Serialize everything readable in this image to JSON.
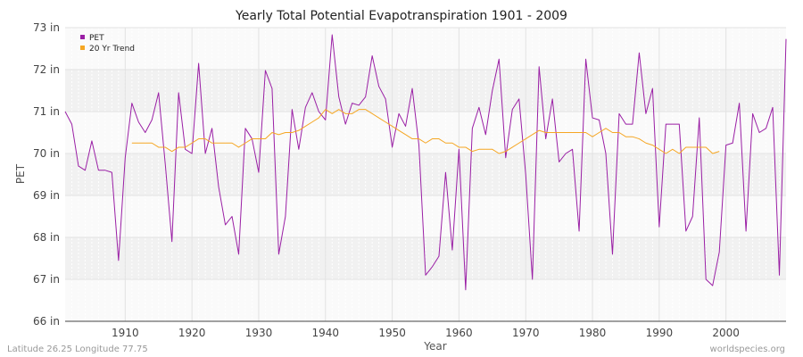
{
  "chart_data": {
    "type": "line",
    "title": "Yearly Total Potential Evapotranspiration 1901 - 2009",
    "xlabel": "Year",
    "ylabel": "PET",
    "xlim": [
      1901,
      2009
    ],
    "ylim": [
      66,
      73
    ],
    "y_unit": "in",
    "x_ticks": [
      1910,
      1920,
      1930,
      1940,
      1950,
      1960,
      1970,
      1980,
      1990,
      2000
    ],
    "y_ticks": [
      66,
      67,
      68,
      69,
      70,
      71,
      72,
      73
    ],
    "y_tick_labels": [
      "66 in",
      "67 in",
      "68 in",
      "69 in",
      "70 in",
      "71 in",
      "72 in",
      "73 in"
    ],
    "grid": true,
    "legend_position": "top-left",
    "series": [
      {
        "name": "PET",
        "color": "#9a1fa5",
        "x": [
          1901,
          1902,
          1903,
          1904,
          1905,
          1906,
          1907,
          1908,
          1909,
          1910,
          1911,
          1912,
          1913,
          1914,
          1915,
          1916,
          1917,
          1918,
          1919,
          1920,
          1921,
          1922,
          1923,
          1924,
          1925,
          1926,
          1927,
          1928,
          1929,
          1930,
          1931,
          1932,
          1933,
          1934,
          1935,
          1936,
          1937,
          1938,
          1939,
          1940,
          1941,
          1942,
          1943,
          1944,
          1945,
          1946,
          1947,
          1948,
          1949,
          1950,
          1951,
          1952,
          1953,
          1954,
          1955,
          1956,
          1957,
          1958,
          1959,
          1960,
          1961,
          1962,
          1963,
          1964,
          1965,
          1966,
          1967,
          1968,
          1969,
          1970,
          1971,
          1972,
          1973,
          1974,
          1975,
          1976,
          1977,
          1978,
          1979,
          1980,
          1981,
          1982,
          1983,
          1984,
          1985,
          1986,
          1987,
          1988,
          1989,
          1990,
          1991,
          1992,
          1993,
          1994,
          1995,
          1996,
          1997,
          1998,
          1999,
          2000,
          2001,
          2002,
          2003,
          2004,
          2005,
          2006,
          2007,
          2008,
          2009
        ],
        "values": [
          71.0,
          70.7,
          69.7,
          69.6,
          70.3,
          69.6,
          69.6,
          69.55,
          67.45,
          69.9,
          71.2,
          70.75,
          70.5,
          70.8,
          71.45,
          69.75,
          67.9,
          71.45,
          70.1,
          70.0,
          72.15,
          70.0,
          70.6,
          69.2,
          68.3,
          68.5,
          67.6,
          70.6,
          70.35,
          69.55,
          71.98,
          71.55,
          67.6,
          68.5,
          71.05,
          70.1,
          71.1,
          71.45,
          71.0,
          70.8,
          72.83,
          71.35,
          70.7,
          71.2,
          71.15,
          71.35,
          72.33,
          71.6,
          71.3,
          70.15,
          70.95,
          70.65,
          71.55,
          70.2,
          67.1,
          67.3,
          67.55,
          69.55,
          67.7,
          70.1,
          66.75,
          70.6,
          71.1,
          70.45,
          71.5,
          72.25,
          69.9,
          71.05,
          71.3,
          69.5,
          67.0,
          72.07,
          70.35,
          71.3,
          69.8,
          70.0,
          70.1,
          68.15,
          72.25,
          70.85,
          70.8,
          70.0,
          67.6,
          70.95,
          70.7,
          70.7,
          72.4,
          70.95,
          71.55,
          68.25,
          70.7,
          70.7,
          70.7,
          68.15,
          68.5,
          70.85,
          67.0,
          66.85,
          67.65,
          70.2,
          70.25,
          71.2,
          68.15,
          70.95,
          70.5,
          70.6,
          71.1,
          67.1,
          72.73
        ]
      },
      {
        "name": "20 Yr Trend",
        "color": "#f5a623",
        "x": [
          1911,
          1912,
          1913,
          1914,
          1915,
          1916,
          1917,
          1918,
          1919,
          1920,
          1921,
          1922,
          1923,
          1924,
          1925,
          1926,
          1927,
          1928,
          1929,
          1930,
          1931,
          1932,
          1933,
          1934,
          1935,
          1936,
          1937,
          1938,
          1939,
          1940,
          1941,
          1942,
          1943,
          1944,
          1945,
          1946,
          1947,
          1948,
          1949,
          1950,
          1951,
          1952,
          1953,
          1954,
          1955,
          1956,
          1957,
          1958,
          1959,
          1960,
          1961,
          1962,
          1963,
          1964,
          1965,
          1966,
          1967,
          1968,
          1969,
          1970,
          1971,
          1972,
          1973,
          1974,
          1975,
          1976,
          1977,
          1978,
          1979,
          1980,
          1981,
          1982,
          1983,
          1984,
          1985,
          1986,
          1987,
          1988,
          1989,
          1990,
          1991,
          1992,
          1993,
          1994,
          1995,
          1996,
          1997,
          1998,
          1999
        ],
        "values": [
          70.25,
          70.25,
          70.25,
          70.25,
          70.15,
          70.15,
          70.05,
          70.15,
          70.15,
          70.25,
          70.35,
          70.35,
          70.25,
          70.25,
          70.25,
          70.25,
          70.15,
          70.25,
          70.35,
          70.35,
          70.35,
          70.5,
          70.45,
          70.5,
          70.5,
          70.55,
          70.65,
          70.75,
          70.85,
          71.05,
          70.95,
          71.05,
          70.95,
          70.95,
          71.05,
          71.05,
          70.95,
          70.85,
          70.75,
          70.65,
          70.55,
          70.45,
          70.35,
          70.35,
          70.25,
          70.35,
          70.35,
          70.25,
          70.25,
          70.15,
          70.15,
          70.05,
          70.1,
          70.1,
          70.1,
          70.0,
          70.05,
          70.15,
          70.25,
          70.35,
          70.45,
          70.55,
          70.5,
          70.5,
          70.5,
          70.5,
          70.5,
          70.5,
          70.5,
          70.4,
          70.5,
          70.6,
          70.5,
          70.5,
          70.4,
          70.4,
          70.35,
          70.25,
          70.2,
          70.1,
          70.0,
          70.1,
          70.0,
          70.15,
          70.15,
          70.15,
          70.15,
          70.0,
          70.05
        ]
      }
    ]
  },
  "footer": {
    "left": "Latitude 26.25 Longitude 77.75",
    "right": "worldspecies.org"
  }
}
